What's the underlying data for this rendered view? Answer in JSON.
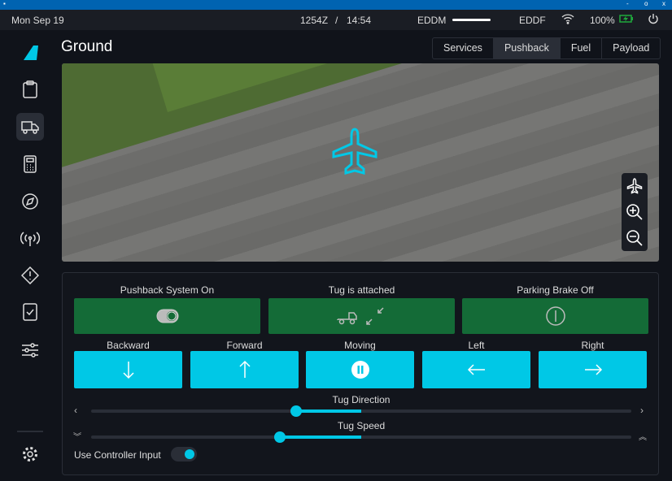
{
  "status": {
    "date": "Mon Sep 19",
    "time_utc": "1254Z",
    "separator": "/",
    "time_local": "14:54",
    "origin": "EDDM",
    "destination": "EDDF",
    "battery": "100%"
  },
  "window": {
    "minimize": "-",
    "maximize": "o",
    "close": "x"
  },
  "page": {
    "title": "Ground"
  },
  "tabs": [
    {
      "label": "Services"
    },
    {
      "label": "Pushback",
      "active": true
    },
    {
      "label": "Fuel"
    },
    {
      "label": "Payload"
    }
  ],
  "sidebar": {
    "items": [
      "logo",
      "dispatch-clipboard",
      "ground-truck",
      "performance-calculator",
      "navigation-compass",
      "atc-antenna",
      "failures-warning",
      "checklist",
      "settings-sliders"
    ],
    "active": "ground-truck",
    "bottom": "gear"
  },
  "map": {
    "controls": [
      "center-aircraft",
      "zoom-in",
      "zoom-out"
    ]
  },
  "pushback": {
    "system": {
      "label": "Pushback System On"
    },
    "tug": {
      "label": "Tug is attached"
    },
    "brake": {
      "label": "Parking Brake Off"
    },
    "buttons": [
      {
        "label": "Backward"
      },
      {
        "label": "Forward"
      },
      {
        "label": "Moving"
      },
      {
        "label": "Left"
      },
      {
        "label": "Right"
      }
    ],
    "direction": {
      "label": "Tug Direction",
      "value_percent": 38
    },
    "speed": {
      "label": "Tug Speed",
      "value_percent": 35
    },
    "controller": {
      "label": "Use Controller Input",
      "on": true
    }
  },
  "colors": {
    "accent": "#00c8e6",
    "active_green": "#146b37",
    "titlebar": "#0063b1",
    "battery": "#1faa3c"
  }
}
